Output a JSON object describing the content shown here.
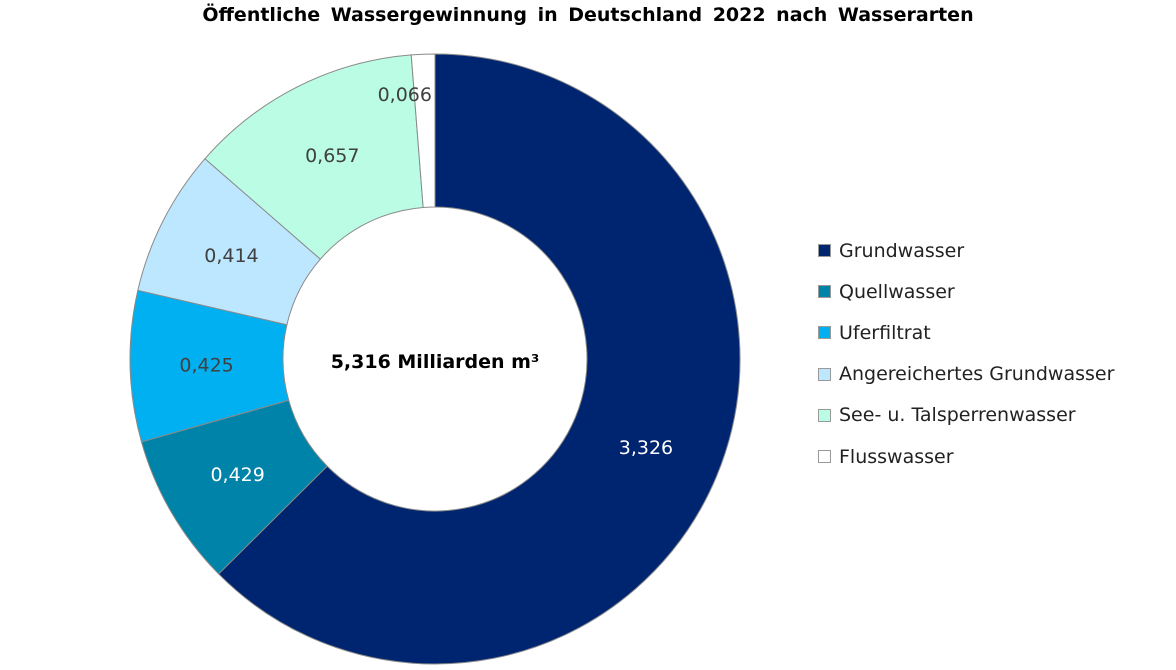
{
  "chart_data": {
    "type": "pie",
    "variant": "donut",
    "title": "Öffentliche  Wassergewinnung  in Deutschland  2022  nach  Wasserarten",
    "center_label": "5,316 Milliarden m³",
    "legend_position": "right",
    "slices": [
      {
        "name": "Grundwasser",
        "value": 3.326,
        "label": "3,326",
        "color": "#002570",
        "label_color": "#ffffff"
      },
      {
        "name": "Quellwasser",
        "value": 0.429,
        "label": "0,429",
        "color": "#0083A8",
        "label_color": "#ffffff"
      },
      {
        "name": "Uferfiltrat",
        "value": 0.425,
        "label": "0,425",
        "color": "#00B0F0",
        "label_color": "#404040"
      },
      {
        "name": "Angereichertes Grundwasser",
        "value": 0.414,
        "label": "0,414",
        "color": "#BDE6FF",
        "label_color": "#404040"
      },
      {
        "name": "See- u. Talsperrenwasser",
        "value": 0.657,
        "label": "0,657",
        "color": "#BAFCE4",
        "label_color": "#404040"
      },
      {
        "name": "Flusswasser",
        "value": 0.066,
        "label": "0,066",
        "color": "#FFFFFF",
        "label_color": "#404040"
      }
    ]
  }
}
